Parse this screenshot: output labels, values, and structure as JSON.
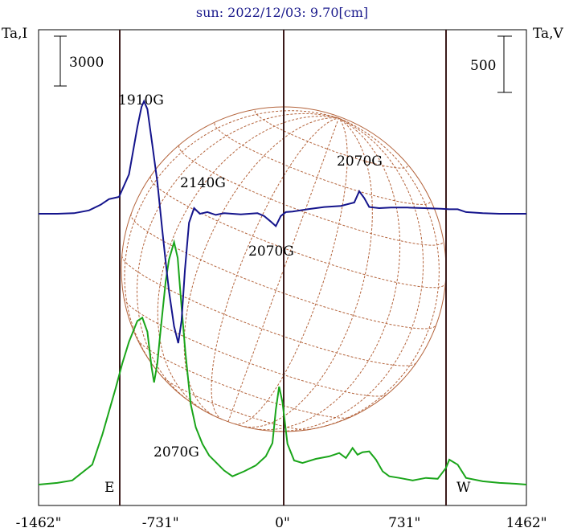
{
  "chart_data": {
    "type": "line",
    "title": "sun: 2022/12/03: 9.70[cm]",
    "y_left_label": "Ta,I",
    "y_right_label": "Ta,V",
    "left_scale_bar": "3000",
    "right_scale_bar": "500",
    "x_ticks": [
      {
        "value": -1462,
        "label": "-1462\""
      },
      {
        "value": -731,
        "label": "-731\""
      },
      {
        "value": 0,
        "label": "0\""
      },
      {
        "value": 731,
        "label": "731\""
      },
      {
        "value": 1462,
        "label": "1462\""
      }
    ],
    "xlim": [
      -1462,
      1462
    ],
    "limb_markers": [
      {
        "x": -975,
        "label": "E"
      },
      {
        "x": 975,
        "label": "W"
      }
    ],
    "colors": {
      "stokes_i": "#1aa51a",
      "stokes_v": "#14148c",
      "disk": "#b4643c",
      "limb_lines": "#3a1a1a",
      "title": "#1a1a8c"
    },
    "series": [
      {
        "key": "I",
        "x": [
          -1462,
          -1350,
          -1260,
          -1140,
          -1080,
          -1000,
          -960,
          -920,
          -870,
          -840,
          -810,
          -785,
          -770,
          -750,
          -735,
          -700,
          -680,
          -650,
          -628,
          -605,
          -582,
          -550,
          -520,
          -480,
          -440,
          -400,
          -350,
          -300,
          -230,
          -160,
          -100,
          -60,
          -40,
          -20,
          0,
          30,
          70,
          120,
          200,
          280,
          340,
          380,
          420,
          450,
          480,
          520,
          560,
          600,
          640,
          700,
          780,
          860,
          930,
          980,
          1000,
          1050,
          1100,
          1200,
          1300,
          1400,
          1462
        ],
        "y": [
          0,
          100,
          250,
          1200,
          3000,
          5800,
          7300,
          8600,
          9850,
          10050,
          9200,
          7100,
          6150,
          7300,
          8850,
          12250,
          13550,
          14600,
          13650,
          10700,
          7950,
          4850,
          3450,
          2450,
          1750,
          1350,
          850,
          500,
          800,
          1150,
          1700,
          2500,
          4500,
          5900,
          4950,
          2450,
          1450,
          1300,
          1550,
          1700,
          1900,
          1600,
          2200,
          1800,
          1950,
          2000,
          1500,
          800,
          500,
          400,
          250,
          400,
          350,
          1000,
          1500,
          1200,
          400,
          200,
          100,
          50,
          0
        ]
      },
      {
        "key": "V",
        "x": [
          -1462,
          -1350,
          -1250,
          -1160,
          -1090,
          -1040,
          -980,
          -920,
          -870,
          -845,
          -830,
          -810,
          -780,
          -750,
          -720,
          -700,
          -680,
          -650,
          -625,
          -605,
          -585,
          -560,
          -530,
          -495,
          -450,
          -400,
          -350,
          -300,
          -250,
          -200,
          -150,
          -110,
          -70,
          -40,
          -10,
          20,
          60,
          150,
          250,
          350,
          430,
          460,
          490,
          520,
          580,
          650,
          750,
          850,
          950,
          1000,
          1050,
          1100,
          1200,
          1300,
          1462
        ],
        "y": [
          0,
          0,
          5,
          30,
          80,
          130,
          150,
          350,
          770,
          950,
          1000,
          930,
          610,
          280,
          -150,
          -430,
          -690,
          -1000,
          -1150,
          -950,
          -500,
          -80,
          50,
          0,
          15,
          -10,
          5,
          0,
          -5,
          0,
          5,
          -20,
          -70,
          -110,
          -20,
          15,
          20,
          40,
          60,
          70,
          100,
          200,
          140,
          60,
          50,
          55,
          55,
          50,
          45,
          40,
          40,
          15,
          5,
          0,
          0
        ]
      }
    ],
    "annotations": [
      "1910G",
      "2140G",
      "2070G",
      "2070G",
      "2070G"
    ]
  }
}
